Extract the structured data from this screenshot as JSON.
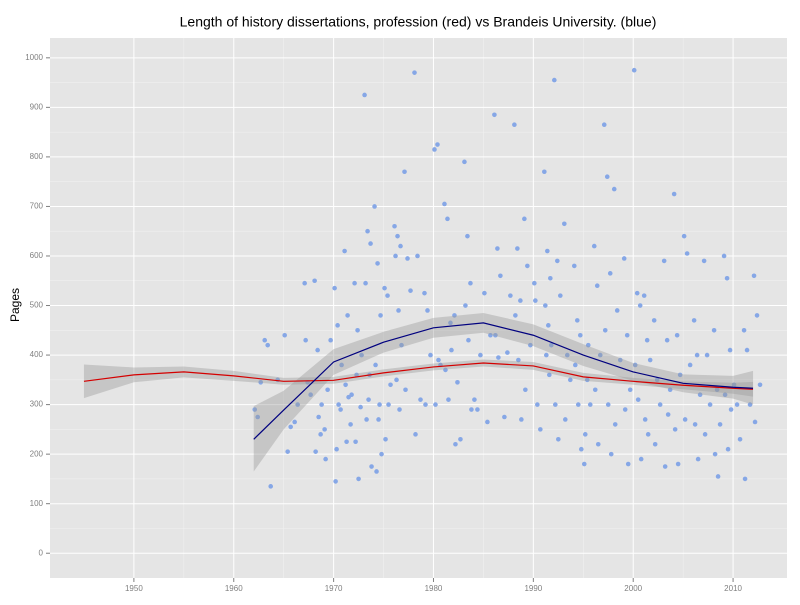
{
  "chart_data": {
    "type": "scatter_smooth",
    "title": "Length of history dissertations, profession (red) vs Brandeis University. (blue)",
    "y_label": "Pages",
    "xlim": [
      1941.6,
      2015.4
    ],
    "ylim": [
      -50,
      1040
    ],
    "xticks": [
      1950,
      1960,
      1970,
      1980,
      1990,
      2000,
      2010
    ],
    "yticks": [
      0,
      100,
      200,
      300,
      400,
      500,
      600,
      700,
      800,
      900,
      1000
    ],
    "grid": true,
    "points": {
      "color": "#86a7e6",
      "x": [
        1962.1,
        1962.4,
        1962.7,
        1963.1,
        1963.4,
        1963.7,
        1964.4,
        1965.1,
        1965.4,
        1965.7,
        1966.1,
        1966.4,
        1967.1,
        1967.4,
        1967.7,
        1967.2,
        1968.1,
        1968.4,
        1968.7,
        1968.2,
        1968.5,
        1968.8,
        1969.1,
        1969.4,
        1969.7,
        1969.2,
        1970.1,
        1970.4,
        1970.7,
        1970.2,
        1970.5,
        1970.8,
        1970.3,
        1971.1,
        1971.4,
        1971.7,
        1971.2,
        1971.5,
        1971.8,
        1971.3,
        1972.1,
        1972.4,
        1972.7,
        1972.2,
        1972.5,
        1972.8,
        1972.3,
        1973.1,
        1973.4,
        1973.7,
        1973.2,
        1973.5,
        1973.8,
        1973.3,
        1973.6,
        1974.1,
        1974.4,
        1974.7,
        1974.2,
        1974.5,
        1974.8,
        1974.3,
        1974.6,
        1975.1,
        1975.4,
        1975.7,
        1975.2,
        1975.5,
        1976.1,
        1976.4,
        1976.7,
        1976.2,
        1976.5,
        1976.8,
        1976.3,
        1976.6,
        1977.1,
        1977.4,
        1977.7,
        1977.2,
        1978.1,
        1978.4,
        1978.7,
        1978.2,
        1979.1,
        1979.4,
        1979.7,
        1979.2,
        1980.1,
        1980.4,
        1980.7,
        1980.2,
        1980.5,
        1981.1,
        1981.4,
        1981.7,
        1981.2,
        1981.5,
        1981.8,
        1982.1,
        1982.4,
        1982.7,
        1982.2,
        1983.1,
        1983.4,
        1983.7,
        1983.2,
        1983.5,
        1983.8,
        1984.1,
        1984.4,
        1984.7,
        1985.1,
        1985.4,
        1985.7,
        1986.1,
        1986.4,
        1986.7,
        1986.2,
        1986.5,
        1987.1,
        1987.4,
        1987.7,
        1988.1,
        1988.4,
        1988.7,
        1988.2,
        1988.5,
        1988.8,
        1989.1,
        1989.4,
        1989.7,
        1989.2,
        1990.1,
        1990.4,
        1990.7,
        1990.2,
        1991.1,
        1991.4,
        1991.7,
        1991.2,
        1991.5,
        1991.8,
        1991.3,
        1991.6,
        1992.1,
        1992.4,
        1992.7,
        1992.2,
        1992.5,
        1993.1,
        1993.4,
        1993.7,
        1993.2,
        1994.1,
        1994.4,
        1994.7,
        1994.2,
        1994.5,
        1994.8,
        1995.1,
        1995.4,
        1995.7,
        1995.2,
        1995.5,
        1996.1,
        1996.4,
        1996.7,
        1996.2,
        1996.5,
        1997.1,
        1997.4,
        1997.7,
        1997.2,
        1997.5,
        1997.8,
        1998.1,
        1998.4,
        1998.7,
        1998.2,
        1999.1,
        1999.4,
        1999.7,
        1999.2,
        1999.5,
        2000.1,
        2000.4,
        2000.7,
        2000.2,
        2000.5,
        2000.8,
        2001.1,
        2001.4,
        2001.7,
        2001.2,
        2001.5,
        2002.1,
        2002.4,
        2002.7,
        2002.2,
        2003.1,
        2003.4,
        2003.7,
        2003.2,
        2003.5,
        2004.1,
        2004.4,
        2004.7,
        2004.2,
        2004.5,
        2005.1,
        2005.4,
        2005.7,
        2005.2,
        2006.1,
        2006.4,
        2006.7,
        2006.2,
        2006.5,
        2007.1,
        2007.4,
        2007.7,
        2007.2,
        2008.1,
        2008.4,
        2008.7,
        2008.2,
        2008.5,
        2009.1,
        2009.4,
        2009.7,
        2009.2,
        2009.5,
        2009.8,
        2010.1,
        2010.4,
        2010.7,
        2011.1,
        2011.4,
        2011.7,
        2011.2,
        2012.1,
        2012.4,
        2012.7,
        2012.2
      ],
      "y": [
        290,
        275,
        345,
        430,
        420,
        135,
        350,
        440,
        205,
        255,
        265,
        300,
        545,
        345,
        320,
        430,
        550,
        410,
        240,
        205,
        275,
        300,
        250,
        330,
        430,
        190,
        535,
        460,
        290,
        145,
        300,
        380,
        210,
        610,
        480,
        260,
        340,
        315,
        320,
        225,
        545,
        450,
        295,
        225,
        150,
        400,
        360,
        925,
        650,
        625,
        545,
        310,
        175,
        270,
        360,
        700,
        585,
        480,
        380,
        270,
        200,
        165,
        300,
        535,
        520,
        340,
        230,
        300,
        660,
        640,
        620,
        600,
        490,
        420,
        350,
        290,
        770,
        595,
        530,
        330,
        970,
        600,
        310,
        240,
        525,
        490,
        400,
        300,
        815,
        825,
        380,
        300,
        390,
        705,
        675,
        465,
        370,
        310,
        410,
        480,
        345,
        230,
        220,
        790,
        640,
        545,
        500,
        430,
        290,
        310,
        290,
        400,
        525,
        265,
        440,
        885,
        615,
        560,
        440,
        395,
        275,
        405,
        520,
        865,
        615,
        510,
        480,
        390,
        270,
        675,
        580,
        420,
        330,
        545,
        300,
        250,
        510,
        770,
        610,
        555,
        500,
        460,
        420,
        400,
        360,
        955,
        590,
        520,
        300,
        230,
        665,
        400,
        350,
        270,
        580,
        470,
        440,
        380,
        300,
        210,
        180,
        350,
        300,
        240,
        420,
        620,
        540,
        400,
        330,
        220,
        865,
        760,
        565,
        450,
        300,
        200,
        735,
        490,
        390,
        260,
        595,
        440,
        330,
        290,
        180,
        975,
        525,
        500,
        380,
        310,
        190,
        520,
        430,
        390,
        270,
        240,
        470,
        350,
        300,
        220,
        590,
        430,
        330,
        175,
        280,
        725,
        440,
        360,
        250,
        180,
        640,
        605,
        380,
        270,
        470,
        400,
        320,
        260,
        190,
        590,
        400,
        300,
        240,
        450,
        330,
        260,
        200,
        155,
        600,
        555,
        410,
        320,
        210,
        290,
        340,
        300,
        230,
        450,
        410,
        300,
        150,
        560,
        480,
        340,
        265
      ]
    },
    "smooths": [
      {
        "color": "#d40000",
        "x": [
          1945,
          1950,
          1955,
          1960,
          1965,
          1970,
          1975,
          1980,
          1985,
          1990,
          1995,
          2000,
          2005,
          2010,
          2012
        ],
        "values": [
          347,
          360,
          366,
          358,
          347,
          349,
          364,
          376,
          384,
          378,
          356,
          347,
          339,
          333,
          331
        ],
        "lower": [
          313,
          345,
          355,
          348,
          340,
          342,
          357,
          369,
          377,
          370,
          348,
          340,
          331,
          322,
          316
        ],
        "upper": [
          381,
          375,
          377,
          368,
          354,
          356,
          371,
          383,
          391,
          386,
          364,
          354,
          347,
          344,
          346
        ]
      },
      {
        "color": "#00007f",
        "x": [
          1962,
          1965,
          1970,
          1975,
          1980,
          1985,
          1990,
          1995,
          2000,
          2005,
          2010,
          2012
        ],
        "values": [
          230,
          289,
          386,
          426,
          455,
          465,
          440,
          400,
          366,
          343,
          335,
          333
        ],
        "lower": [
          165,
          250,
          360,
          405,
          435,
          445,
          418,
          378,
          348,
          325,
          312,
          300
        ],
        "upper": [
          297,
          328,
          412,
          447,
          475,
          485,
          462,
          422,
          384,
          361,
          358,
          368
        ]
      }
    ]
  }
}
